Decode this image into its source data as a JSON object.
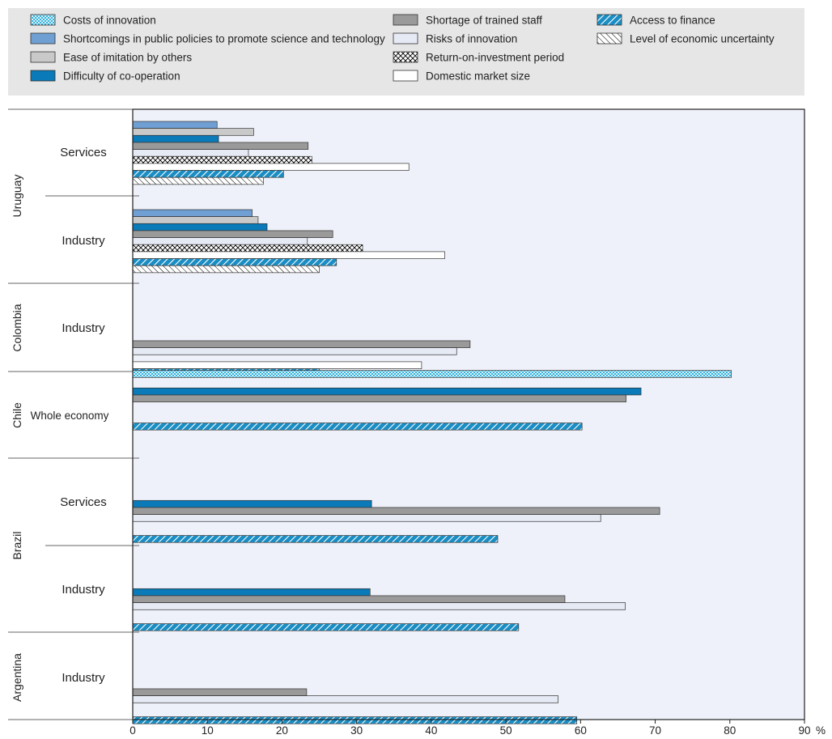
{
  "chart_data": {
    "type": "bar",
    "orientation": "horizontal",
    "xunit": "%",
    "xlim": [
      0,
      90
    ],
    "xticks": [
      0,
      10,
      20,
      30,
      40,
      50,
      60,
      70,
      80,
      90
    ],
    "grid": false,
    "legend_position": "top",
    "series": [
      {
        "key": "costs",
        "name": "Costs of innovation",
        "fill": "#00a0d6",
        "pattern": "crosshatch-fine"
      },
      {
        "key": "policy",
        "name": "Shortcomings in public policies to promote science and technology",
        "fill": "#6f9fd3",
        "pattern": "solid"
      },
      {
        "key": "imitation",
        "name": "Ease of imitation by others",
        "fill": "#c9c9c9",
        "pattern": "solid"
      },
      {
        "key": "cooperation",
        "name": "Difficulty of co-operation",
        "fill": "#0a7ab8",
        "pattern": "solid"
      },
      {
        "key": "staff",
        "name": "Shortage of trained staff",
        "fill": "#9a9a9a",
        "pattern": "solid"
      },
      {
        "key": "risks",
        "name": "Risks of innovation",
        "fill": "#e6eaf5",
        "pattern": "solid"
      },
      {
        "key": "roi",
        "name": "Return-on-investment period",
        "fill": "#ffffff",
        "pattern": "crosshatch-black"
      },
      {
        "key": "market",
        "name": "Domestic market size",
        "fill": "#ffffff",
        "pattern": "solid"
      },
      {
        "key": "finance",
        "name": "Access to finance",
        "fill": "#1a8ec4",
        "pattern": "diagonal-white"
      },
      {
        "key": "uncertainty",
        "name": "Level of economic uncertainty",
        "fill": "#ffffff",
        "pattern": "diagonal-black"
      }
    ],
    "groups": [
      {
        "country": "Uruguay",
        "sector": "Services",
        "values": {
          "policy": 11.3,
          "imitation": 16.2,
          "cooperation": 11.5,
          "staff": 23.5,
          "risks": 15.5,
          "roi": 24,
          "market": 37,
          "finance": 20.2,
          "uncertainty": 17.5
        }
      },
      {
        "country": "Uruguay",
        "sector": "Industry",
        "values": {
          "policy": 16,
          "imitation": 16.8,
          "cooperation": 18,
          "staff": 26.8,
          "risks": 23.4,
          "roi": 30.8,
          "market": 41.8,
          "finance": 27.3,
          "uncertainty": 25
        }
      },
      {
        "country": "Colombia",
        "sector": "Industry",
        "values": {
          "staff": 45.2,
          "risks": 43.4,
          "market": 38.7,
          "finance": 25
        }
      },
      {
        "country": "Chile",
        "sector": "Whole economy",
        "values": {
          "costs": 80.2,
          "cooperation": 68.1,
          "staff": 66.1,
          "finance": 60.2
        }
      },
      {
        "country": "Brazil",
        "sector": "Services",
        "values": {
          "cooperation": 32,
          "staff": 70.6,
          "risks": 62.7,
          "finance": 48.9
        }
      },
      {
        "country": "Brazil",
        "sector": "Industry",
        "values": {
          "cooperation": 31.8,
          "staff": 57.9,
          "risks": 66,
          "finance": 51.7
        }
      },
      {
        "country": "Argentina",
        "sector": "Industry",
        "values": {
          "staff": 23.3,
          "risks": 57,
          "finance": 59.5
        }
      }
    ]
  }
}
